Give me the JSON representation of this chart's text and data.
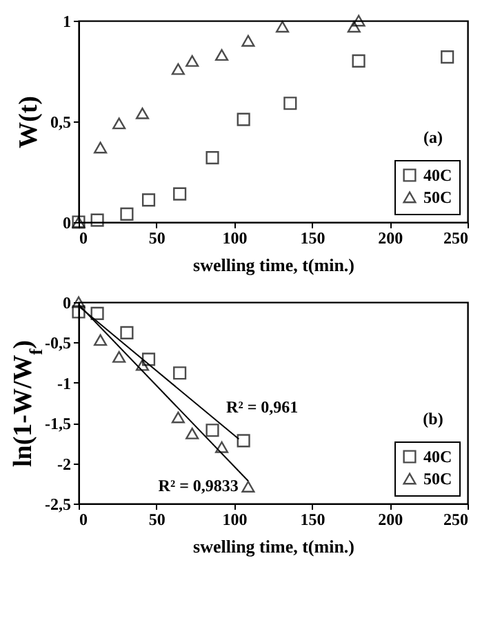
{
  "chart_data": [
    {
      "type": "scatter",
      "xlabel": "swelling time, t(min.)",
      "ylabel": "W(t)",
      "annotations": [
        "(a)"
      ],
      "xlim": [
        0,
        250
      ],
      "xticks": [
        0,
        50,
        100,
        150,
        200,
        250
      ],
      "ylim": [
        0,
        1
      ],
      "yticks": [
        0,
        {
          "value": 0.5,
          "label": "0,5"
        },
        1
      ],
      "legend": "bottom right",
      "series": [
        {
          "name": "40C",
          "color": "#000000",
          "marker": "square",
          "x": [
            0,
            12,
            31,
            45,
            65,
            86,
            106,
            136,
            180,
            237
          ],
          "values": [
            0,
            0.01,
            0.04,
            0.11,
            0.14,
            0.32,
            0.51,
            0.59,
            0.8,
            0.82
          ]
        },
        {
          "name": "50C",
          "color": "#000000",
          "marker": "triangle",
          "x": [
            0,
            14,
            26,
            41,
            64,
            73,
            92,
            109,
            131,
            177,
            180
          ],
          "values": [
            0,
            0.37,
            0.49,
            0.54,
            0.76,
            0.8,
            0.83,
            0.9,
            0.97,
            0.97,
            1
          ]
        }
      ]
    },
    {
      "type": "scatter",
      "xlabel": "swelling time, t(min.)",
      "ylabel": "ln(1-W/W$_{f}$)",
      "annotations": [
        "(b)",
        "R² = 0,961",
        "R² = 0,9833"
      ],
      "xlim": [
        0,
        250
      ],
      "xticks": [
        0,
        50,
        100,
        150,
        200,
        250
      ],
      "ylim": [
        -2.5,
        0
      ],
      "yticks": [
        {
          "value": -2.5,
          "label": "-2,5"
        },
        -2,
        {
          "value": -1.5,
          "label": "-1,5"
        },
        -1,
        {
          "value": -0.5,
          "label": "-0,5"
        },
        0
      ],
      "legend": "bottom right",
      "series": [
        {
          "name": "40C",
          "color": "#000000",
          "marker": "square",
          "x": [
            0,
            12,
            31,
            45,
            65,
            86,
            106
          ],
          "values": [
            -0.12,
            -0.14,
            -0.38,
            -0.71,
            -0.88,
            -1.59,
            -1.72
          ]
        },
        {
          "name": "50C",
          "color": "#000000",
          "marker": "triangle",
          "x": [
            0,
            14,
            26,
            41,
            64,
            73,
            92,
            109
          ],
          "values": [
            0,
            -0.47,
            -0.68,
            -0.78,
            -1.43,
            -1.63,
            -1.8,
            -2.29
          ]
        },
        {
          "type": "line",
          "color": "#000000",
          "x": [
            0,
            103
          ],
          "values": [
            -0.05,
            -1.7
          ]
        },
        {
          "type": "line",
          "color": "#000000",
          "x": [
            0,
            109
          ],
          "values": [
            -0.03,
            -2.22
          ]
        }
      ]
    }
  ]
}
